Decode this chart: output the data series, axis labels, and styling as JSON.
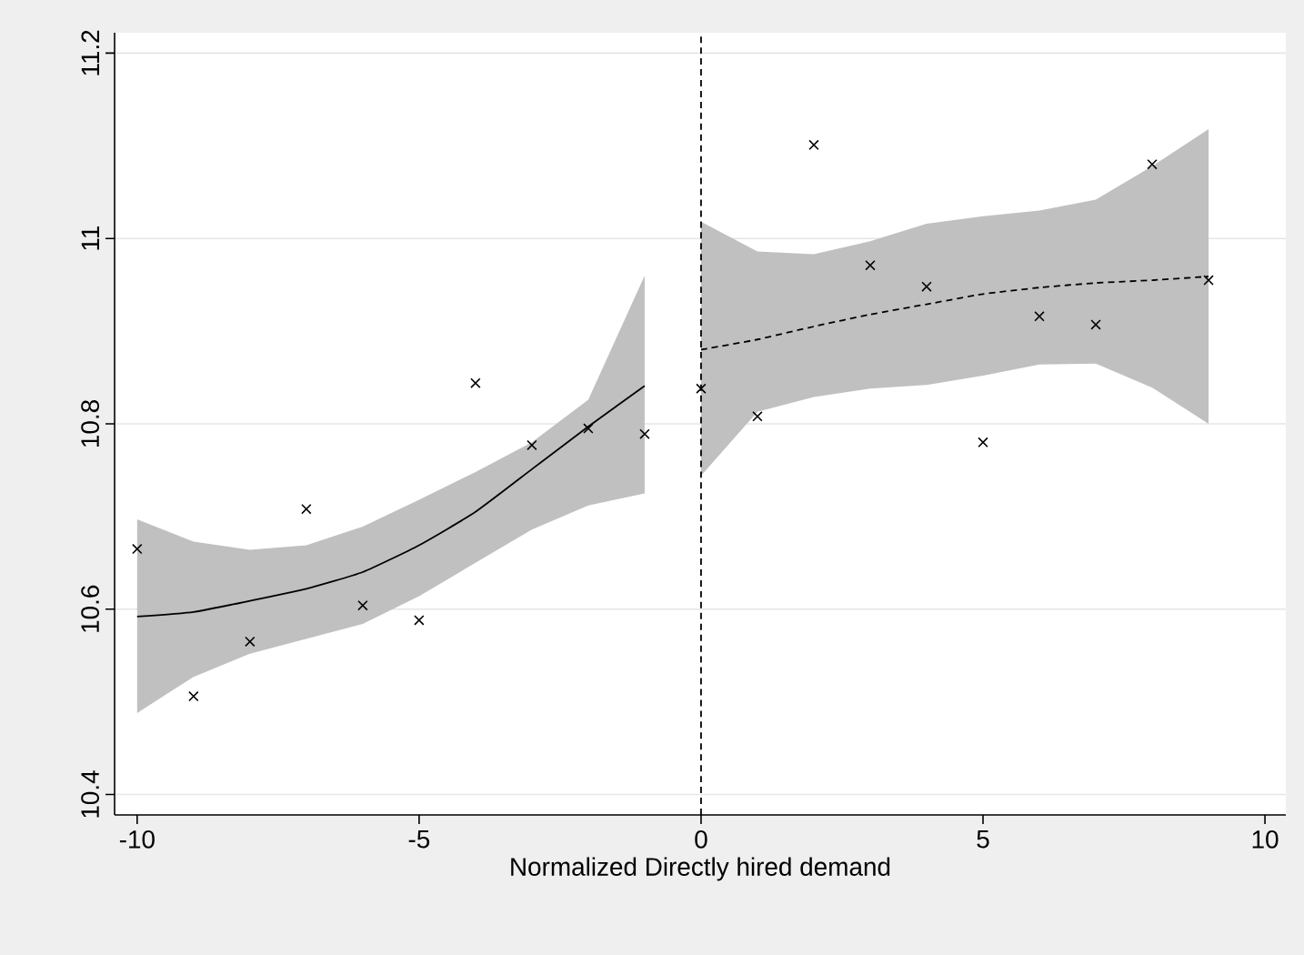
{
  "chart_data": {
    "type": "scatter",
    "xlabel": "Normalized Directly hired demand",
    "xlim": [
      -10.4,
      10.37
    ],
    "ylim": [
      10.378,
      11.222
    ],
    "xticks": [
      -10,
      -5,
      0,
      5,
      10
    ],
    "yticks": [
      10.4,
      10.6,
      10.8,
      11,
      11.2
    ],
    "grid": "y",
    "legend": false,
    "ref_lines": [
      {
        "axis": "x",
        "value": 0,
        "line_style": "dashed",
        "color": "#000000"
      }
    ],
    "series": [
      {
        "type": "line",
        "color": "#000000",
        "line_style": "solid",
        "marker": "none",
        "x": [
          -10,
          -9,
          -8,
          -7,
          -6,
          -5,
          -4,
          -3,
          -2,
          -1
        ],
        "values": [
          10.592,
          10.597,
          10.609,
          10.622,
          10.64,
          10.669,
          10.705,
          10.751,
          10.797,
          10.841
        ],
        "lower": [
          10.488,
          10.527,
          10.552,
          10.568,
          10.584,
          10.614,
          10.65,
          10.686,
          10.712,
          10.725
        ],
        "upper": [
          10.697,
          10.673,
          10.664,
          10.669,
          10.689,
          10.718,
          10.748,
          10.78,
          10.826,
          10.96
        ]
      },
      {
        "type": "line",
        "color": "#000000",
        "line_style": "dashed",
        "marker": "none",
        "x": [
          0,
          1,
          2,
          3,
          4,
          5,
          6,
          7,
          8,
          9
        ],
        "values": [
          10.88,
          10.891,
          10.905,
          10.918,
          10.929,
          10.94,
          10.947,
          10.952,
          10.955,
          10.959
        ],
        "lower": [
          10.744,
          10.813,
          10.829,
          10.838,
          10.842,
          10.852,
          10.864,
          10.865,
          10.839,
          10.8
        ],
        "upper": [
          11.018,
          10.986,
          10.983,
          10.997,
          11.016,
          11.024,
          11.03,
          11.042,
          11.078,
          11.118
        ]
      },
      {
        "color": "#000000",
        "marker": "cross",
        "x": [
          -10,
          -9,
          -8,
          -7,
          -6,
          -5,
          -4,
          -3,
          -2,
          -1,
          0,
          1,
          2,
          3,
          4,
          5,
          6,
          7,
          8,
          9
        ],
        "values": [
          10.665,
          10.506,
          10.565,
          10.708,
          10.604,
          10.588,
          10.844,
          10.777,
          10.795,
          10.789,
          10.838,
          10.808,
          11.101,
          10.971,
          10.948,
          10.78,
          10.916,
          10.907,
          11.08,
          10.955
        ]
      }
    ]
  }
}
